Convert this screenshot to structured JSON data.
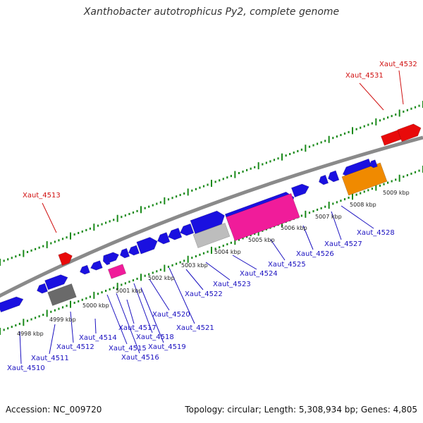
{
  "title": "Xanthobacter autotrophicus Py2, complete genome",
  "footer": {
    "accession": "Accession: NC_009720",
    "topology": "Topology: circular; Length: 5,308,934 bp; Genes: 4,805"
  },
  "colors": {
    "forward_cds": "#1a10e0",
    "red_feature": "#e80a0a",
    "pink_feature": "#f01c9a",
    "orange_feature": "#f08a00",
    "gray_feature": "#bdbdbd",
    "dark_feature": "#6a6a6a",
    "backbone": "#8a8a8a",
    "ticks": "#1a8a1a",
    "label_blue": "#1a10c0",
    "label_red": "#d01010"
  },
  "kbp_labels": [
    "4998 kbp",
    "4999 kbp",
    "5000 kbp",
    "5001 kbp",
    "5002 kbp",
    "5003 kbp",
    "5004 kbp",
    "5005 kbp",
    "5006 kbp",
    "5007 kbp",
    "5008 kbp",
    "5009 kbp"
  ],
  "gene_labels": [
    {
      "text": "Xaut_4510",
      "color": "blue"
    },
    {
      "text": "Xaut_4511",
      "color": "blue"
    },
    {
      "text": "Xaut_4512",
      "color": "blue"
    },
    {
      "text": "Xaut_4513",
      "color": "red"
    },
    {
      "text": "Xaut_4514",
      "color": "blue"
    },
    {
      "text": "Xaut_4515",
      "color": "blue"
    },
    {
      "text": "Xaut_4516",
      "color": "blue"
    },
    {
      "text": "Xaut_4517",
      "color": "blue"
    },
    {
      "text": "Xaut_4518",
      "color": "blue"
    },
    {
      "text": "Xaut_4519",
      "color": "blue"
    },
    {
      "text": "Xaut_4520",
      "color": "blue"
    },
    {
      "text": "Xaut_4521",
      "color": "blue"
    },
    {
      "text": "Xaut_4522",
      "color": "blue"
    },
    {
      "text": "Xaut_4523",
      "color": "blue"
    },
    {
      "text": "Xaut_4524",
      "color": "blue"
    },
    {
      "text": "Xaut_4525",
      "color": "blue"
    },
    {
      "text": "Xaut_4526",
      "color": "blue"
    },
    {
      "text": "Xaut_4527",
      "color": "blue"
    },
    {
      "text": "Xaut_4528",
      "color": "blue"
    },
    {
      "text": "Xaut_4531",
      "color": "red"
    },
    {
      "text": "Xaut_4532",
      "color": "red"
    }
  ]
}
